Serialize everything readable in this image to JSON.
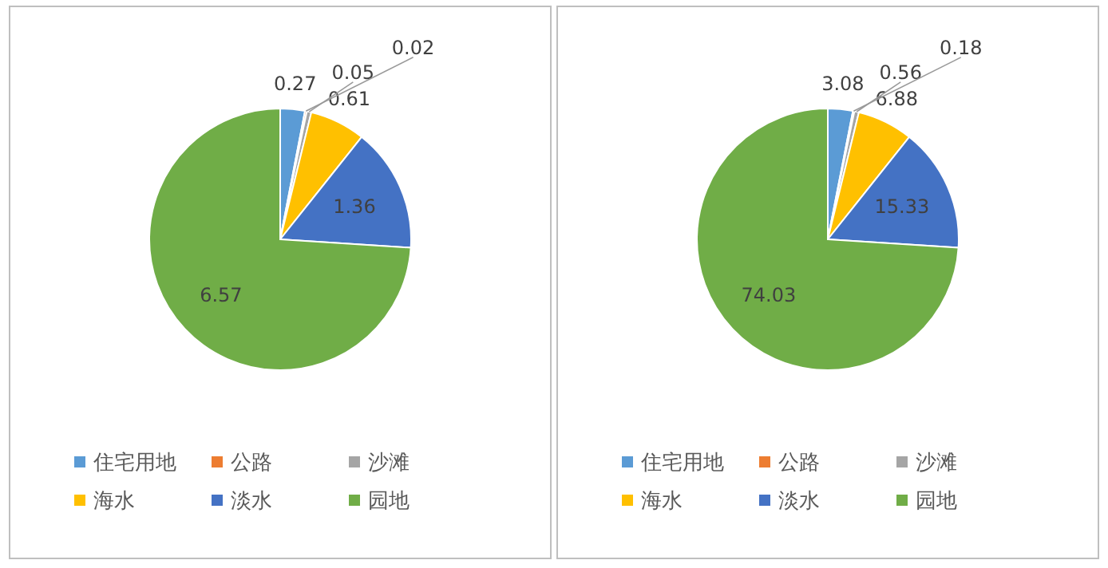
{
  "chart_data": [
    {
      "type": "pie",
      "categories": [
        "住宅用地",
        "公路",
        "沙滩",
        "海水",
        "淡水",
        "园地"
      ],
      "values": [
        0.27,
        0.02,
        0.05,
        0.61,
        1.36,
        6.57
      ],
      "colors": [
        "#5b9bd5",
        "#ed7d31",
        "#a5a5a5",
        "#ffc000",
        "#4472c4",
        "#70ad47"
      ],
      "data_labels": true,
      "legend": "bottom"
    },
    {
      "type": "pie",
      "categories": [
        "住宅用地",
        "公路",
        "沙滩",
        "海水",
        "淡水",
        "园地"
      ],
      "values": [
        3.08,
        0.18,
        0.56,
        6.88,
        15.33,
        74.03
      ],
      "colors": [
        "#5b9bd5",
        "#ed7d31",
        "#a5a5a5",
        "#ffc000",
        "#4472c4",
        "#70ad47"
      ],
      "data_labels": true,
      "legend": "bottom"
    }
  ]
}
